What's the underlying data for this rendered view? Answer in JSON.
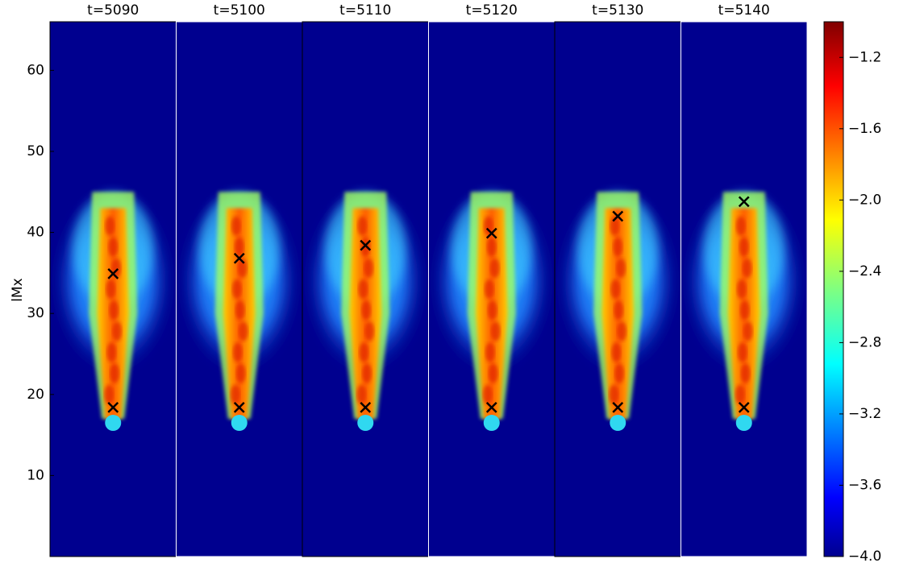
{
  "chart_data": {
    "type": "heatmap-panels",
    "ylabel": "lMx",
    "ylim": [
      0,
      66
    ],
    "yticks": [
      10,
      20,
      30,
      40,
      50,
      60
    ],
    "clim": [
      -4.0,
      -1.0
    ],
    "cticks": [
      {
        "value": -4.0,
        "label": "−4.0"
      },
      {
        "value": -3.6,
        "label": "−3.6"
      },
      {
        "value": -3.2,
        "label": "−3.2"
      },
      {
        "value": -2.8,
        "label": "−2.8"
      },
      {
        "value": -2.4,
        "label": "−2.4"
      },
      {
        "value": -2.0,
        "label": "−2.0"
      },
      {
        "value": -1.6,
        "label": "−1.6"
      },
      {
        "value": -1.2,
        "label": "−1.2"
      }
    ],
    "panels": [
      {
        "title": "t=5090",
        "markers": [
          34.9,
          18.4
        ]
      },
      {
        "title": "t=5100",
        "markers": [
          36.8,
          18.4
        ]
      },
      {
        "title": "t=5110",
        "markers": [
          38.4,
          18.4
        ]
      },
      {
        "title": "t=5120",
        "markers": [
          39.9,
          18.4
        ]
      },
      {
        "title": "t=5130",
        "markers": [
          42.0,
          18.4
        ]
      },
      {
        "title": "t=5140",
        "markers": [
          43.8,
          18.4
        ]
      }
    ]
  }
}
